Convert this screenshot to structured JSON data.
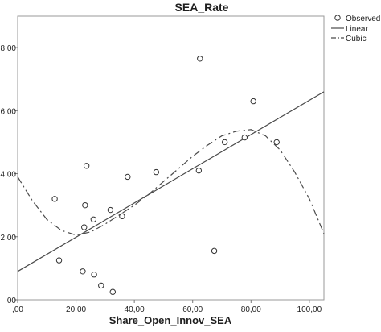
{
  "chart_data": {
    "type": "scatter",
    "title": "SEA_Rate",
    "xlabel": "Share_Open_Innov_SEA",
    "ylabel": "",
    "xlim": [
      0,
      105
    ],
    "ylim": [
      0,
      9
    ],
    "xticks": [
      0,
      20,
      40,
      60,
      80,
      100
    ],
    "xtick_labels": [
      ",00",
      "20,00",
      "40,00",
      "60,00",
      "80,00",
      "100,00"
    ],
    "yticks": [
      0,
      2,
      4,
      6,
      8
    ],
    "ytick_labels": [
      ",00",
      "2,00",
      "4,00",
      "6,00",
      "8,00"
    ],
    "grid": false,
    "legend_position": "top-right",
    "legend": [
      "Observed",
      "Linear",
      "Cubic"
    ],
    "series": [
      {
        "name": "Observed",
        "points": [
          [
            12.7,
            3.2
          ],
          [
            14.2,
            1.25
          ],
          [
            22.3,
            0.9
          ],
          [
            22.8,
            2.3
          ],
          [
            23.1,
            3.0
          ],
          [
            23.6,
            4.25
          ],
          [
            26.0,
            2.55
          ],
          [
            26.2,
            0.8
          ],
          [
            28.6,
            0.45
          ],
          [
            31.8,
            2.85
          ],
          [
            32.6,
            0.25
          ],
          [
            35.8,
            2.65
          ],
          [
            37.7,
            3.9
          ],
          [
            47.5,
            4.05
          ],
          [
            62.1,
            4.1
          ],
          [
            62.5,
            7.65
          ],
          [
            67.4,
            1.55
          ],
          [
            71.0,
            5.0
          ],
          [
            77.8,
            5.15
          ],
          [
            80.8,
            6.3
          ],
          [
            88.8,
            5.0
          ]
        ]
      },
      {
        "name": "Linear",
        "line": [
          [
            0,
            0.9
          ],
          [
            105,
            6.6
          ]
        ]
      },
      {
        "name": "Cubic",
        "curve_points": [
          [
            0,
            3.9
          ],
          [
            5,
            3.15
          ],
          [
            10,
            2.55
          ],
          [
            15,
            2.2
          ],
          [
            20,
            2.05
          ],
          [
            25,
            2.15
          ],
          [
            30,
            2.4
          ],
          [
            35,
            2.7
          ],
          [
            40,
            3.0
          ],
          [
            45,
            3.35
          ],
          [
            50,
            3.75
          ],
          [
            55,
            4.15
          ],
          [
            60,
            4.55
          ],
          [
            65,
            4.9
          ],
          [
            70,
            5.2
          ],
          [
            75,
            5.35
          ],
          [
            80,
            5.4
          ],
          [
            85,
            5.2
          ],
          [
            90,
            4.75
          ],
          [
            95,
            4.05
          ],
          [
            100,
            3.2
          ],
          [
            105,
            2.1
          ]
        ]
      }
    ]
  }
}
